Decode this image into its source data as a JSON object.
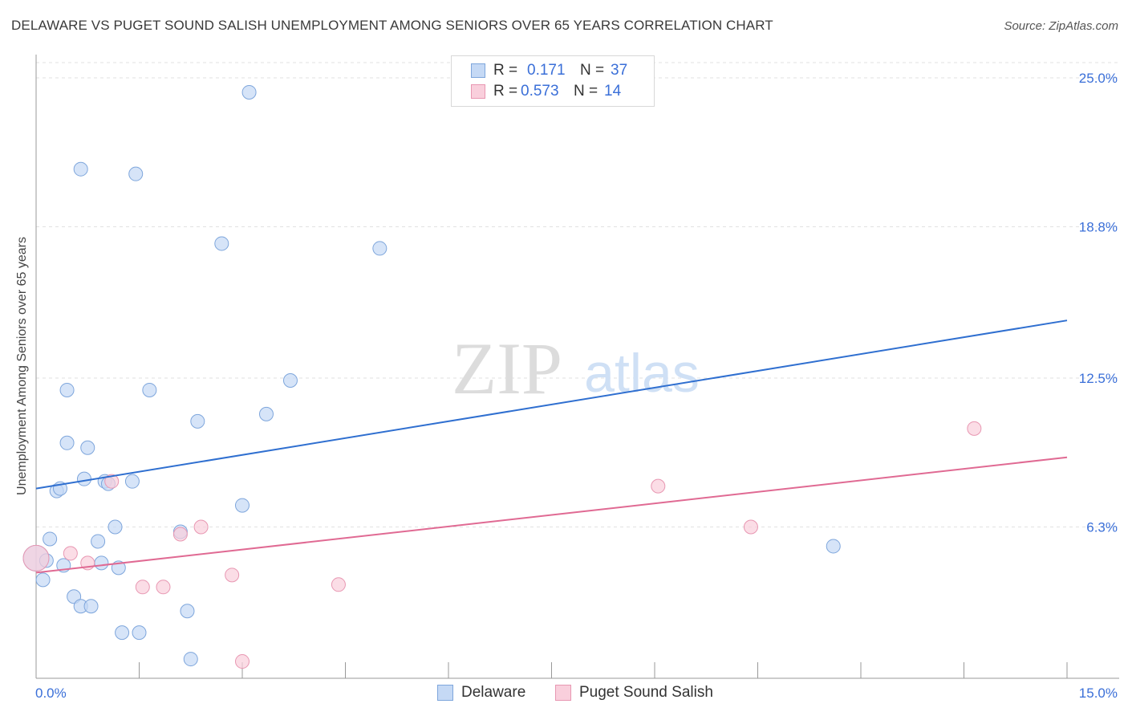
{
  "title": "DELAWARE VS PUGET SOUND SALISH UNEMPLOYMENT AMONG SENIORS OVER 65 YEARS CORRELATION CHART",
  "source": "Source: ZipAtlas.com",
  "watermark": {
    "zip": "ZIP",
    "atlas": "atlas"
  },
  "legend": {
    "rows": [
      {
        "r_label": "R =",
        "r_value": "0.171",
        "n_label": "N =",
        "n_value": "37"
      },
      {
        "r_label": "R =",
        "r_value": "0.573",
        "n_label": "N =",
        "n_value": "14"
      }
    ]
  },
  "bottom_legend": {
    "delaware": "Delaware",
    "puget": "Puget Sound Salish"
  },
  "colors": {
    "delaware_fill": "#c5d9f5",
    "delaware_stroke": "#7ea6dc",
    "delaware_line": "#2f6fd0",
    "puget_fill": "#f9cfdc",
    "puget_stroke": "#e897b2",
    "puget_line": "#e06a93",
    "tick_text": "#3a6fd8",
    "grid": "#e2e2e2"
  },
  "chart_data": {
    "type": "scatter",
    "xlabel": "",
    "ylabel": "Unemployment Among Seniors over 65 years",
    "xlim": [
      0,
      15
    ],
    "ylim": [
      0,
      25
    ],
    "x_tick_labels": [
      {
        "value": 0,
        "label": "0.0%"
      },
      {
        "value": 15,
        "label": "15.0%"
      }
    ],
    "y_tick_labels": [
      {
        "value": 6.3,
        "label": "6.3%"
      },
      {
        "value": 12.5,
        "label": "12.5%"
      },
      {
        "value": 18.8,
        "label": "18.8%"
      },
      {
        "value": 25.0,
        "label": "25.0%"
      }
    ],
    "grid": true,
    "series": [
      {
        "name": "Delaware",
        "points": [
          [
            0.0,
            5.0
          ],
          [
            0.15,
            4.9
          ],
          [
            0.1,
            4.1
          ],
          [
            0.2,
            5.8
          ],
          [
            0.4,
            4.7
          ],
          [
            0.3,
            7.8
          ],
          [
            0.35,
            7.9
          ],
          [
            0.45,
            9.8
          ],
          [
            0.75,
            9.6
          ],
          [
            0.7,
            8.3
          ],
          [
            1.0,
            8.2
          ],
          [
            1.05,
            8.1
          ],
          [
            1.4,
            8.2
          ],
          [
            0.45,
            12.0
          ],
          [
            1.65,
            12.0
          ],
          [
            2.35,
            10.7
          ],
          [
            3.35,
            11.0
          ],
          [
            3.7,
            12.4
          ],
          [
            0.55,
            3.4
          ],
          [
            0.65,
            3.0
          ],
          [
            0.8,
            3.0
          ],
          [
            0.9,
            5.7
          ],
          [
            0.95,
            4.8
          ],
          [
            1.15,
            6.3
          ],
          [
            1.2,
            4.6
          ],
          [
            1.25,
            1.9
          ],
          [
            1.5,
            1.9
          ],
          [
            2.1,
            6.1
          ],
          [
            2.2,
            2.8
          ],
          [
            2.25,
            0.8
          ],
          [
            3.0,
            7.2
          ],
          [
            0.65,
            21.2
          ],
          [
            1.45,
            21.0
          ],
          [
            2.7,
            18.1
          ],
          [
            5.0,
            17.9
          ],
          [
            3.1,
            24.4
          ],
          [
            11.6,
            5.5
          ]
        ]
      },
      {
        "name": "Puget Sound Salish",
        "points": [
          [
            0.0,
            5.0
          ],
          [
            0.5,
            5.2
          ],
          [
            0.75,
            4.8
          ],
          [
            1.1,
            8.2
          ],
          [
            1.55,
            3.8
          ],
          [
            1.85,
            3.8
          ],
          [
            2.1,
            6.0
          ],
          [
            2.4,
            6.3
          ],
          [
            2.85,
            4.3
          ],
          [
            3.0,
            0.7
          ],
          [
            4.4,
            3.9
          ],
          [
            9.05,
            8.0
          ],
          [
            10.4,
            6.3
          ],
          [
            13.65,
            10.4
          ]
        ]
      }
    ],
    "trendlines": [
      {
        "name": "Delaware",
        "x": [
          0,
          15
        ],
        "y": [
          7.9,
          14.9
        ]
      },
      {
        "name": "Puget Sound Salish",
        "x": [
          0,
          15
        ],
        "y": [
          4.4,
          9.2
        ]
      }
    ]
  }
}
